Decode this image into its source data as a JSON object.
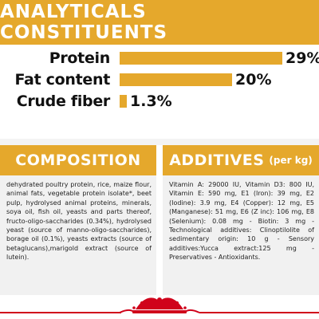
{
  "banner": {
    "title": "ANALYTICALS CONSTITUENTS"
  },
  "constituents": [
    {
      "label": "Protein",
      "value_text": "29%",
      "percent": 29
    },
    {
      "label": "Fat content",
      "value_text": "20%",
      "percent": 20
    },
    {
      "label": "Crude fiber",
      "value_text": "1.3%",
      "percent": 1.3
    }
  ],
  "composition": {
    "title": "COMPOSITION",
    "text": "dehydrated poultry protein, rice, maize flour, animal fats, vegetable protein isolate*, beet pulp, hydrolysed animal proteins, minerals, soya oil, fish oil, yeasts and parts thereof, fructo-oligo-saccharides (0.34%), hydrolysed yeast (source of manno-oligo-saccharides), borage oil (0.1%), yeasts extracts (source of betaglucans),marigold extract (source of lutein)."
  },
  "additives": {
    "title": "ADDITIVES",
    "subtitle": "(per kg)",
    "text": "Vitamin A: 29000 IU, Vitamin D3: 800 IU, Vitamin E: 590 mg, E1 (Iron): 39 mg, E2 (Iodine): 3.9 mg, E4 (Copper): 12 mg, E5 (Manganese): 51 mg, E6 (Z inc): 106 mg, E8 (Selenium): 0.08 mg - Biotin: 3 mg - Technological additives: Clinoptilolite of sedimentary origin: 10 g - Sensory additives:Yucca extract:125 mg - Preservatives - Antioxidants."
  },
  "colors": {
    "accent": "#e5a82c",
    "brand_red": "#d0021b",
    "panel_bg": "#f1f1f1"
  },
  "brand": {
    "logo_icon": "crown-logo-icon"
  }
}
